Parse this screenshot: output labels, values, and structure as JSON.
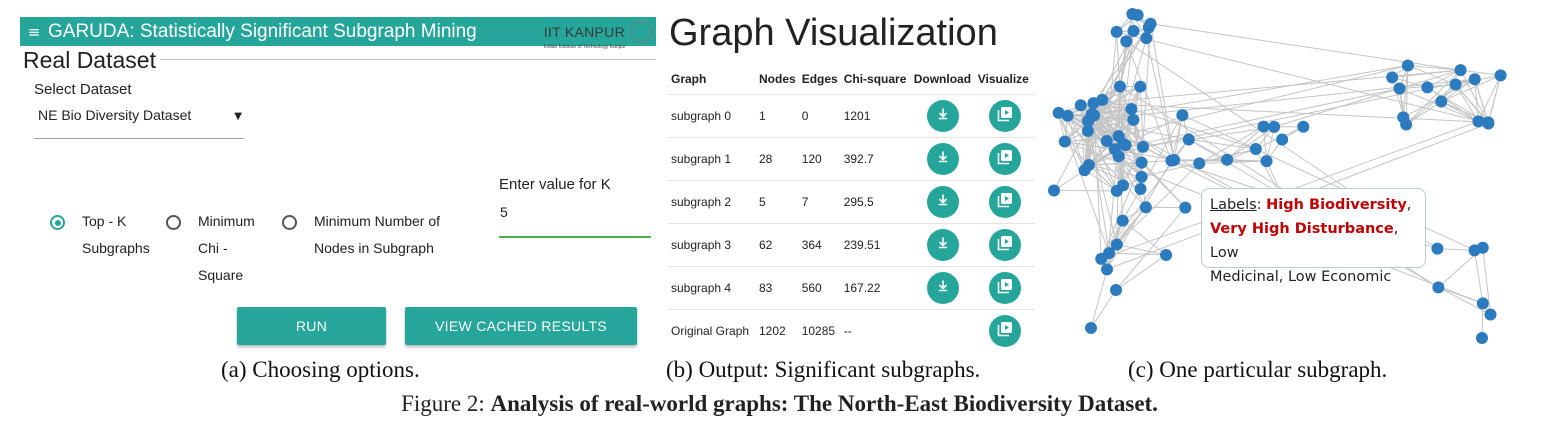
{
  "colors": {
    "accent": "#26a69a",
    "input_underline": "#4caf50",
    "node": "#2c7bbf",
    "edge": "#c4c4c4",
    "label_red": "#c00000"
  },
  "panel_a": {
    "app_title": "GARUDA: Statistically Significant Subgraph Mining",
    "logo": {
      "text": "IIT KANPUR",
      "subtext": "Indian Institute of Technology Kanpur"
    },
    "section_title": "Real Dataset",
    "select": {
      "label": "Select Dataset",
      "value": "NE Bio Diversity Dataset"
    },
    "radios": [
      {
        "lines": [
          "Top - K",
          "Subgraphs"
        ],
        "checked": true
      },
      {
        "lines": [
          "Minimum",
          "Chi -",
          "Square"
        ],
        "checked": false
      },
      {
        "lines": [
          "Minimum Number of",
          "Nodes in Subgraph"
        ],
        "checked": false
      }
    ],
    "k_input": {
      "label": "Enter value for K",
      "value": "5"
    },
    "buttons": {
      "run": "RUN",
      "cached": "VIEW CACHED RESULTS"
    }
  },
  "panel_b": {
    "title": "Graph Visualization",
    "columns": [
      "Graph",
      "Nodes",
      "Edges",
      "Chi-square",
      "Download",
      "Visualize"
    ],
    "rows": [
      {
        "graph": "subgraph 0",
        "nodes": "1",
        "edges": "0",
        "chi": "1201",
        "download": true
      },
      {
        "graph": "subgraph 1",
        "nodes": "28",
        "edges": "120",
        "chi": "392.7",
        "download": true
      },
      {
        "graph": "subgraph 2",
        "nodes": "5",
        "edges": "7",
        "chi": "295.5",
        "download": true
      },
      {
        "graph": "subgraph 3",
        "nodes": "62",
        "edges": "364",
        "chi": "239.51",
        "download": true
      },
      {
        "graph": "subgraph 4",
        "nodes": "83",
        "edges": "560",
        "chi": "167.22",
        "download": true
      },
      {
        "graph": "Original Graph",
        "nodes": "1202",
        "edges": "10285",
        "chi": "--",
        "download": false
      }
    ]
  },
  "panel_c": {
    "labels_title": "Labels",
    "label_parts": [
      {
        "text": "High Biodiversity",
        "highlight": true
      },
      {
        "text": ",",
        "highlight": false
      },
      {
        "text": "Very High Disturbance",
        "highlight": true
      },
      {
        "text": ", Low",
        "highlight": false
      },
      {
        "text": "Medicinal, Low Economic",
        "highlight": false
      }
    ]
  },
  "captions": {
    "a": "(a) Choosing options.",
    "b": "(b) Output: Significant subgraphs.",
    "c": "(c) One particular subgraph.",
    "figure_prefix": "Figure 2:",
    "figure_text": "Analysis of real-world graphs: The North-East Biodiversity Dataset."
  }
}
